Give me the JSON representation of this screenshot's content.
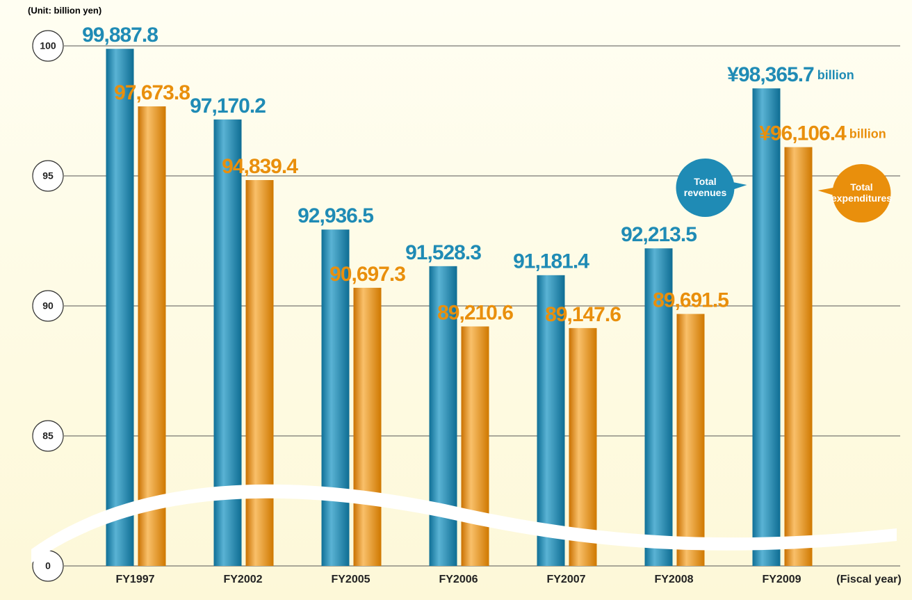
{
  "chart_data": {
    "type": "bar",
    "unit_label": "(Unit: billion yen)",
    "x_label": "(Fiscal year)",
    "categories": [
      "FY1997",
      "FY2002",
      "FY2005",
      "FY2006",
      "FY2007",
      "FY2008",
      "FY2009"
    ],
    "series": [
      {
        "name": "Total revenues",
        "color": "#1f8bb5",
        "values": [
          99.8878,
          97.1702,
          92.9365,
          91.5283,
          91.1814,
          92.2135,
          98.3657
        ],
        "value_labels": [
          "99,887.8",
          "97,170.2",
          "92,936.5",
          "91,528.3",
          "91,181.4",
          "92,213.5",
          "¥98,365.7 billion"
        ]
      },
      {
        "name": "Total expenditures",
        "color": "#e98f0c",
        "values": [
          97.6738,
          94.8394,
          90.6973,
          89.2106,
          89.1476,
          89.6915,
          96.1064
        ],
        "value_labels": [
          "97,673.8",
          "94,839.4",
          "90,697.3",
          "89,210.6",
          "89,147.6",
          "89,691.5",
          "¥96,106.4 billion"
        ]
      }
    ],
    "ylim": [
      0,
      100
    ],
    "axis_break": [
      0,
      80
    ],
    "yticks": [
      0,
      85,
      90,
      95,
      100
    ],
    "grid": true
  }
}
